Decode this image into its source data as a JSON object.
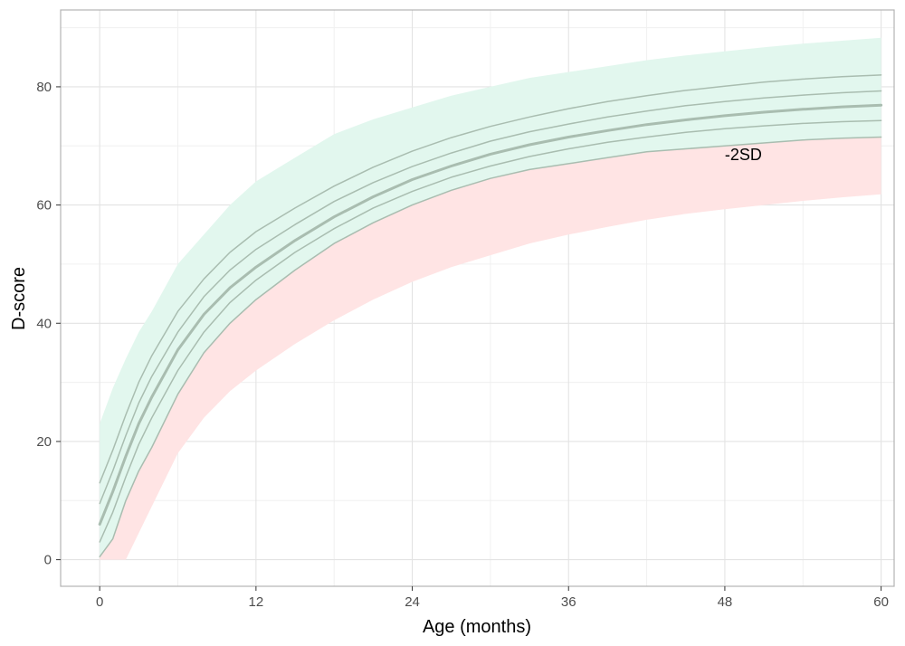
{
  "chart_data": {
    "type": "line",
    "xlabel": "Age (months)",
    "ylabel": "D-score",
    "xlim": [
      -3,
      61
    ],
    "ylim": [
      -4.5,
      93
    ],
    "xticks": [
      0,
      12,
      24,
      36,
      48,
      60
    ],
    "yticks": [
      0,
      20,
      40,
      60,
      80
    ],
    "grid": true,
    "x": [
      0,
      1,
      2,
      3,
      4,
      6,
      8,
      10,
      12,
      15,
      18,
      21,
      24,
      27,
      30,
      33,
      36,
      39,
      42,
      45,
      48,
      51,
      54,
      57,
      60
    ],
    "bands": [
      {
        "name": "green",
        "color": "#e2f7ee",
        "lower": [
          0.5,
          3.5,
          10,
          15,
          19,
          28,
          35,
          40,
          44,
          49,
          53.5,
          57,
          60,
          62.5,
          64.5,
          66,
          67,
          68,
          69,
          69.5,
          70,
          70.5,
          71,
          71.3,
          71.5
        ],
        "upper": [
          23,
          29,
          34,
          38.5,
          42,
          50,
          55,
          60,
          64,
          68,
          72,
          74.5,
          76.5,
          78.5,
          80,
          81.5,
          82.5,
          83.5,
          84.5,
          85.3,
          86,
          86.7,
          87.3,
          87.8,
          88.3
        ]
      },
      {
        "name": "red",
        "color": "#ffe4e4",
        "lower": [
          0,
          0,
          0,
          4.5,
          9,
          18,
          24,
          28.5,
          32,
          36.5,
          40.5,
          44,
          47,
          49.5,
          51.5,
          53.5,
          55,
          56.3,
          57.5,
          58.5,
          59.3,
          60,
          60.7,
          61.3,
          61.8
        ],
        "upper": [
          0.5,
          3.5,
          10,
          15,
          19,
          28,
          35,
          40,
          44,
          49,
          53.5,
          57,
          60,
          62.5,
          64.5,
          66,
          67,
          68,
          69,
          69.5,
          70,
          70.5,
          71,
          71.3,
          71.5
        ]
      }
    ],
    "series": [
      {
        "values": [
          0.5,
          3.5,
          10,
          15,
          19,
          28,
          35,
          40,
          44,
          49,
          53.5,
          57,
          60,
          62.5,
          64.5,
          66,
          67,
          68,
          69,
          69.5,
          70,
          70.5,
          71,
          71.3,
          71.5
        ],
        "width": 1.5
      },
      {
        "values": [
          3,
          8,
          14,
          19.5,
          24,
          32,
          38.5,
          43.5,
          47.3,
          52,
          56,
          59.5,
          62.3,
          64.7,
          66.6,
          68.2,
          69.5,
          70.6,
          71.5,
          72.3,
          72.9,
          73.4,
          73.8,
          74.1,
          74.3
        ],
        "width": 1.5
      },
      {
        "values": [
          6,
          11.5,
          17.5,
          23,
          27.5,
          35.5,
          41.5,
          46,
          49.5,
          54,
          58,
          61.4,
          64.3,
          66.6,
          68.6,
          70.2,
          71.5,
          72.6,
          73.6,
          74.4,
          75.1,
          75.7,
          76.2,
          76.6,
          76.9
        ],
        "width": 3
      },
      {
        "values": [
          9.5,
          15,
          21,
          26.5,
          31,
          38.5,
          44.5,
          49,
          52.5,
          56.7,
          60.6,
          63.8,
          66.5,
          68.8,
          70.8,
          72.4,
          73.7,
          74.9,
          75.9,
          76.8,
          77.5,
          78.1,
          78.6,
          79,
          79.3
        ],
        "width": 1.5
      },
      {
        "values": [
          13,
          18.5,
          24.5,
          30,
          34.5,
          42,
          47.5,
          52,
          55.5,
          59.5,
          63.2,
          66.4,
          69.1,
          71.4,
          73.3,
          74.9,
          76.3,
          77.5,
          78.5,
          79.4,
          80.1,
          80.8,
          81.3,
          81.7,
          82
        ],
        "width": 1.5
      }
    ],
    "line_color": "#a9bdb0",
    "annotations": [
      {
        "text": "-2SD",
        "x": 48,
        "y": 68.5
      }
    ]
  }
}
